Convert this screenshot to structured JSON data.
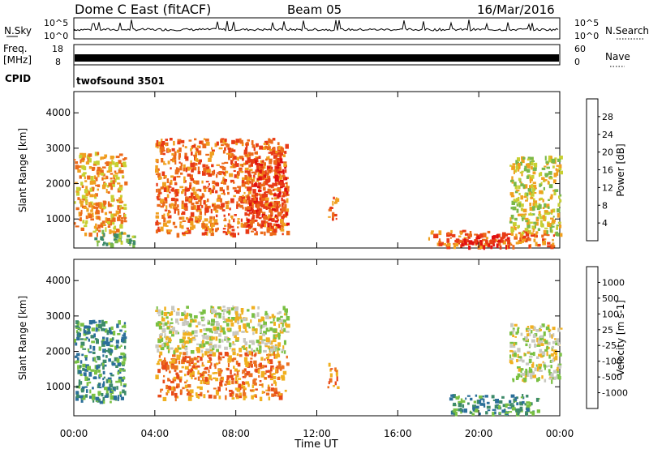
{
  "header": {
    "station": "Dome C East (fitACF)",
    "beam": "Beam 05",
    "date": "16/Mar/2016"
  },
  "top_panels": {
    "nsky_label": "N.Sky",
    "nsky_ticks": [
      "10^5",
      "10^0"
    ],
    "nsearch_label": "N.Search",
    "nsearch_ticks": [
      "10^5",
      "10^0"
    ],
    "freq_label": "Freq.",
    "freq_unit": "[MHz]",
    "freq_ticks": [
      "18",
      "8"
    ],
    "nave_label": "Nave",
    "nave_ticks": [
      "60",
      "0"
    ],
    "cpid_label": "CPID",
    "cpid_value": "twofsound 3501"
  },
  "chart_data": [
    {
      "type": "heatmap",
      "name": "power",
      "ylabel": "Slant Range [km]",
      "xlabel": "Time UT",
      "yticks": [
        1000,
        2000,
        3000,
        4000
      ],
      "ylim": [
        180,
        4600
      ],
      "xticks": [
        "00:00",
        "04:00",
        "08:00",
        "12:00",
        "16:00",
        "20:00",
        "00:00"
      ],
      "xlim_hours": [
        0,
        24
      ],
      "colorbar": {
        "label": "Power [dB]",
        "ticks": [
          "28",
          "24",
          "20",
          "16",
          "12",
          "8",
          "4"
        ],
        "colors": [
          "#0a1ef5",
          "#2b4fb0",
          "#3d8a6a",
          "#7ab84a",
          "#c8d032",
          "#f0a020",
          "#ec6a1a",
          "#e83a16",
          "#e01010"
        ]
      },
      "regions": [
        {
          "t0": 0.0,
          "t1": 2.5,
          "r0": 600,
          "r1": 2900,
          "level": 5
        },
        {
          "t0": 1.0,
          "t1": 3.0,
          "r0": 300,
          "r1": 700,
          "level": 3
        },
        {
          "t0": 4.0,
          "t1": 10.5,
          "r0": 600,
          "r1": 3300,
          "level": 6
        },
        {
          "t0": 8.5,
          "t1": 10.5,
          "r0": 800,
          "r1": 2800,
          "level": 7
        },
        {
          "t0": 12.5,
          "t1": 13.0,
          "r0": 1000,
          "r1": 1700,
          "level": 6
        },
        {
          "t0": 17.5,
          "t1": 23.8,
          "r0": 250,
          "r1": 700,
          "level": 6
        },
        {
          "t0": 19.0,
          "t1": 21.5,
          "r0": 250,
          "r1": 600,
          "level": 8
        },
        {
          "t0": 21.5,
          "t1": 24.0,
          "r0": 600,
          "r1": 2800,
          "level": 4
        }
      ]
    },
    {
      "type": "heatmap",
      "name": "velocity",
      "ylabel": "Slant Range [km]",
      "xlabel": "Time UT",
      "yticks": [
        1000,
        2000,
        3000,
        4000
      ],
      "ylim": [
        180,
        4600
      ],
      "xticks": [
        "00:00",
        "04:00",
        "08:00",
        "12:00",
        "16:00",
        "20:00",
        "00:00"
      ],
      "xlim_hours": [
        0,
        24
      ],
      "colorbar": {
        "label": "Velocity [m s-1]",
        "ticks": [
          "1000",
          "500",
          "100",
          "25",
          "-25",
          "-100",
          "-500",
          "-1000"
        ],
        "colors": [
          "#1f3fa8",
          "#2b6f9a",
          "#3d8a6a",
          "#7ac043",
          "#c8c8c0",
          "#f0b020",
          "#ec7020",
          "#e84a18",
          "#e01010"
        ]
      },
      "regions": [
        {
          "t0": 0.0,
          "t1": 2.5,
          "r0": 600,
          "r1": 2900,
          "level": 2
        },
        {
          "t0": 4.0,
          "t1": 10.5,
          "r0": 2000,
          "r1": 3300,
          "level": 4
        },
        {
          "t0": 4.0,
          "t1": 10.5,
          "r0": 700,
          "r1": 2000,
          "level": 6
        },
        {
          "t0": 12.5,
          "t1": 13.0,
          "r0": 1000,
          "r1": 1700,
          "level": 6
        },
        {
          "t0": 18.5,
          "t1": 23.0,
          "r0": 250,
          "r1": 800,
          "level": 2
        },
        {
          "t0": 21.5,
          "t1": 24.0,
          "r0": 1200,
          "r1": 2800,
          "level": 4
        }
      ]
    }
  ]
}
